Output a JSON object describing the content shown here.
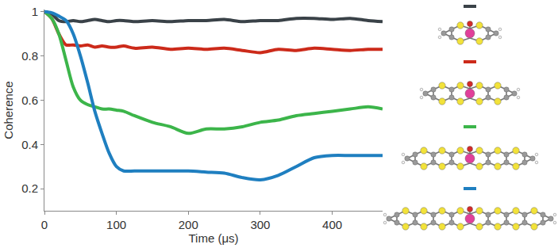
{
  "chart_data": {
    "type": "line",
    "x_label": "Time (μs)",
    "y_label": "Coherence",
    "x": [
      0,
      10,
      20,
      30,
      40,
      50,
      60,
      70,
      80,
      90,
      100,
      110,
      125,
      150,
      175,
      200,
      225,
      250,
      275,
      300,
      325,
      350,
      375,
      400,
      425,
      450,
      470
    ],
    "series": [
      {
        "color": "#3a4248",
        "values": [
          1,
          0.99,
          0.96,
          0.955,
          0.96,
          0.955,
          0.96,
          0.965,
          0.96,
          0.955,
          0.96,
          0.96,
          0.955,
          0.96,
          0.955,
          0.96,
          0.96,
          0.965,
          0.955,
          0.96,
          0.96,
          0.97,
          0.97,
          0.965,
          0.97,
          0.96,
          0.955
        ]
      },
      {
        "color": "#cc2a1a",
        "values": [
          1,
          0.97,
          0.9,
          0.85,
          0.85,
          0.845,
          0.85,
          0.84,
          0.845,
          0.84,
          0.84,
          0.845,
          0.835,
          0.84,
          0.83,
          0.835,
          0.83,
          0.835,
          0.825,
          0.815,
          0.83,
          0.825,
          0.835,
          0.83,
          0.825,
          0.83,
          0.83
        ]
      },
      {
        "color": "#3cb54a",
        "values": [
          1,
          0.97,
          0.9,
          0.78,
          0.66,
          0.6,
          0.58,
          0.57,
          0.56,
          0.56,
          0.555,
          0.55,
          0.53,
          0.5,
          0.48,
          0.45,
          0.47,
          0.47,
          0.48,
          0.5,
          0.51,
          0.53,
          0.54,
          0.55,
          0.56,
          0.57,
          0.56
        ]
      },
      {
        "color": "#1f7fc0",
        "values": [
          1,
          0.995,
          0.98,
          0.96,
          0.9,
          0.8,
          0.68,
          0.55,
          0.45,
          0.36,
          0.3,
          0.28,
          0.28,
          0.28,
          0.28,
          0.28,
          0.275,
          0.27,
          0.25,
          0.24,
          0.26,
          0.3,
          0.34,
          0.35,
          0.35,
          0.35,
          0.35
        ]
      }
    ],
    "xlim": [
      0,
      470
    ],
    "xticks": [
      0,
      100,
      200,
      300,
      400
    ],
    "ylim": [
      0.1,
      1.01
    ],
    "yticks": [
      0.2,
      0.4,
      0.6,
      0.8,
      1
    ],
    "grid": false,
    "line_style": "solid"
  }
}
